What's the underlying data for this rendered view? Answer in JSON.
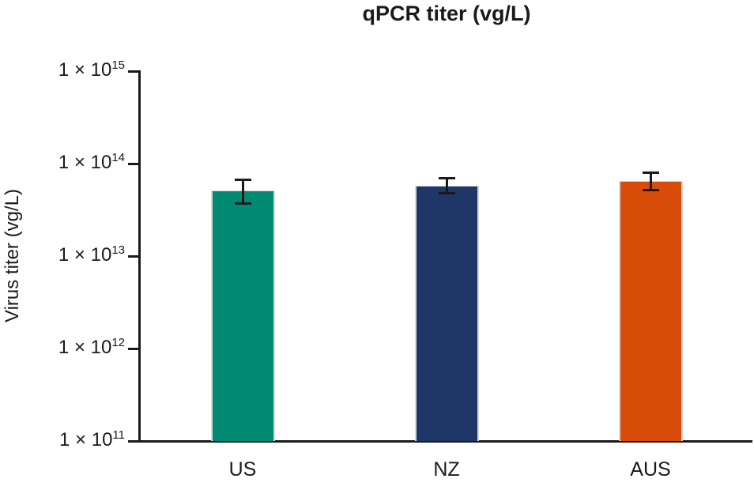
{
  "chart_data": {
    "type": "bar",
    "title": "qPCR titer (vg/L)",
    "ylabel": "Virus titer (vg/L)",
    "xlabel": "",
    "y_scale": "log",
    "ylim": [
      100000000000.0,
      1000000000000000.0
    ],
    "y_tick_prefix": "1 × 10",
    "y_tick_exponents": [
      15,
      14,
      13,
      12,
      11
    ],
    "categories": [
      "US",
      "NZ",
      "AUS"
    ],
    "series": [
      {
        "name": "qPCR titer",
        "values": [
          51000000000000.0,
          58000000000000.0,
          65000000000000.0
        ],
        "error_upper": [
          67000000000000.0,
          70000000000000.0,
          79000000000000.0
        ],
        "error_lower": [
          37000000000000.0,
          48000000000000.0,
          52000000000000.0
        ],
        "colors": [
          "#008A74",
          "#1F3767",
          "#D94B09"
        ]
      }
    ],
    "grid": false,
    "legend": false,
    "error_bar_color": "#1A1A1A"
  },
  "colors": {
    "background": "#FFFFFF",
    "axis": "#1A1A1A",
    "text": "#1A1A1A",
    "bar_edge": "#D9D9D9"
  }
}
